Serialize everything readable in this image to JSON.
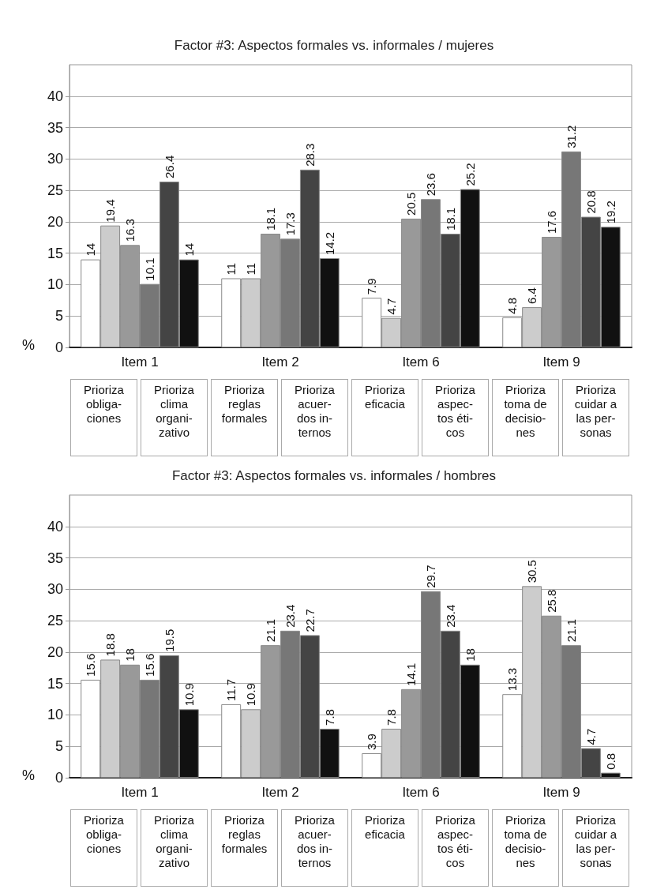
{
  "chart_data": [
    {
      "type": "bar",
      "title": "Factor #3: Aspectos formales vs. informales / mujeres",
      "ylabel": "%",
      "categories": [
        "Item 1",
        "Item 2",
        "Item 6",
        "Item 9"
      ],
      "ylim": [
        0,
        45
      ],
      "yticks": [
        0,
        5,
        10,
        15,
        20,
        25,
        30,
        35,
        40
      ],
      "grid": "y",
      "data_labels": true,
      "series": [
        {
          "color": "#ffffff",
          "values": [
            14,
            11,
            7.9,
            4.8
          ]
        },
        {
          "color": "#cccccc",
          "values": [
            19.4,
            11,
            4.7,
            6.4
          ]
        },
        {
          "color": "#999999",
          "values": [
            16.3,
            18.1,
            20.5,
            17.6
          ]
        },
        {
          "color": "#777777",
          "values": [
            10.1,
            17.3,
            23.6,
            31.2
          ]
        },
        {
          "color": "#444444",
          "values": [
            26.4,
            28.3,
            18.1,
            20.8
          ]
        },
        {
          "color": "#111111",
          "values": [
            14,
            14.2,
            25.2,
            19.2
          ]
        }
      ],
      "annotations": [
        "Prioriza\nobliga-\nciones",
        "Prioriza\nclima\norgani-\nzativo",
        "Prioriza\nreglas\nformales",
        "Prioriza\nacuer-\ndos in-\nternos",
        "Prioriza\neficacia",
        "Prioriza\naspec-\ntos éti-\ncos",
        "Prioriza\ntoma de\ndecisio-\nnes",
        "Prioriza\ncuidar a\nlas per-\nsonas"
      ]
    },
    {
      "type": "bar",
      "title": "Factor #3: Aspectos formales vs. informales / hombres",
      "ylabel": "%",
      "categories": [
        "Item 1",
        "Item 2",
        "Item 6",
        "Item 9"
      ],
      "ylim": [
        0,
        45
      ],
      "yticks": [
        0,
        5,
        10,
        15,
        20,
        25,
        30,
        35,
        40
      ],
      "grid": "y",
      "data_labels": true,
      "series": [
        {
          "color": "#ffffff",
          "values": [
            15.6,
            11.7,
            3.9,
            13.3
          ]
        },
        {
          "color": "#cccccc",
          "values": [
            18.8,
            10.9,
            7.8,
            30.5
          ]
        },
        {
          "color": "#999999",
          "values": [
            18,
            21.1,
            14.1,
            25.8
          ]
        },
        {
          "color": "#777777",
          "values": [
            15.6,
            23.4,
            29.7,
            21.1
          ]
        },
        {
          "color": "#444444",
          "values": [
            19.5,
            22.7,
            23.4,
            4.7
          ]
        },
        {
          "color": "#111111",
          "values": [
            10.9,
            7.8,
            18,
            0.8
          ]
        }
      ],
      "annotations": [
        "Prioriza\nobliga-\nciones",
        "Prioriza\nclima\norgani-\nzativo",
        "Prioriza\nreglas\nformales",
        "Prioriza\nacuer-\ndos in-\nternos",
        "Prioriza\neficacia",
        "Prioriza\naspec-\ntos éti-\ncos",
        "Prioriza\ntoma de\ndecisio-\nnes",
        "Prioriza\ncuidar a\nlas per-\nsonas"
      ]
    }
  ]
}
